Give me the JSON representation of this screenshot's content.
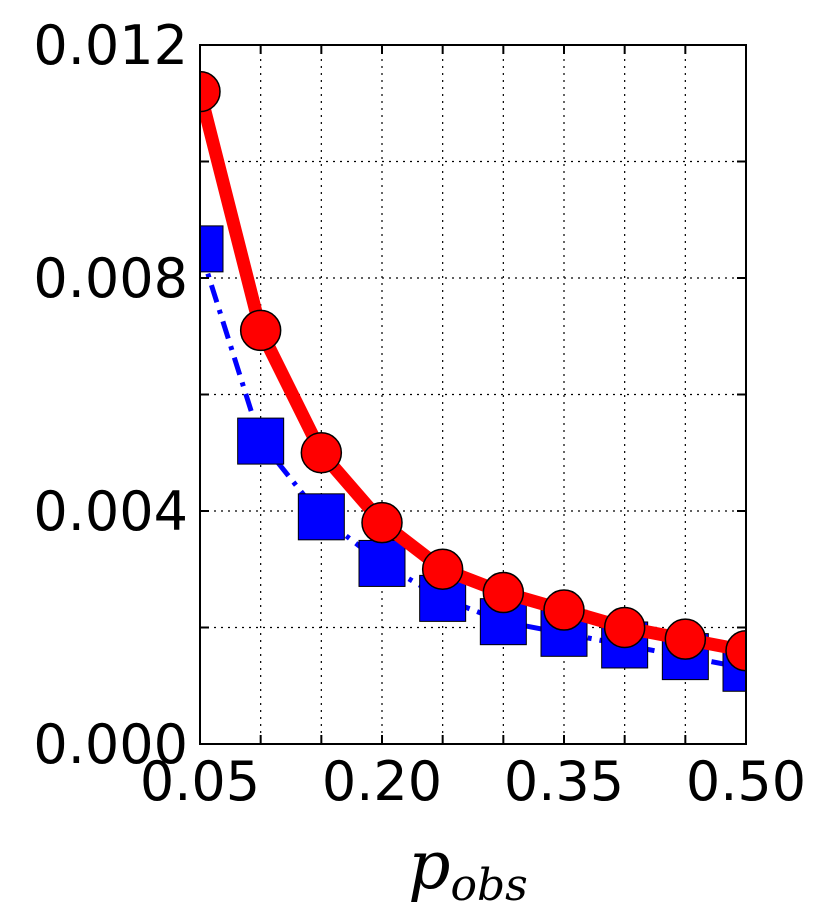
{
  "chart_data": {
    "type": "line",
    "title": "",
    "xlabel": {
      "base": "p",
      "subscript": "obs"
    },
    "ylabel": "",
    "xlim": [
      0.05,
      0.5
    ],
    "ylim": [
      0.0,
      0.012
    ],
    "grid": true,
    "grid_style": "dotted",
    "x_ticks": [
      0.05,
      0.2,
      0.35,
      0.5
    ],
    "x_tick_labels": [
      "0.05",
      "0.20",
      "0.35",
      "0.50"
    ],
    "x_minor_grid": [
      0.05,
      0.1,
      0.15,
      0.2,
      0.25,
      0.3,
      0.35,
      0.4,
      0.45,
      0.5
    ],
    "y_ticks": [
      0.0,
      0.004,
      0.008,
      0.012
    ],
    "y_tick_labels": [
      "0.000",
      "0.004",
      "0.008",
      "0.012"
    ],
    "y_minor_grid": [
      0.0,
      0.002,
      0.004,
      0.006,
      0.008,
      0.01,
      0.012
    ],
    "x": [
      0.05,
      0.1,
      0.15,
      0.2,
      0.25,
      0.3,
      0.35,
      0.4,
      0.45,
      0.5
    ],
    "series": [
      {
        "color": "#0000ff",
        "line_style": "dashdot",
        "marker": "square",
        "values": [
          0.0085,
          0.0052,
          0.0039,
          0.0031,
          0.0025,
          0.0021,
          0.0019,
          0.0017,
          0.0015,
          0.0013
        ]
      },
      {
        "color": "#ff0000",
        "line_style": "solid",
        "marker": "circle",
        "values": [
          0.0112,
          0.0071,
          0.005,
          0.0038,
          0.003,
          0.0026,
          0.0023,
          0.002,
          0.0018,
          0.0016
        ]
      }
    ]
  }
}
